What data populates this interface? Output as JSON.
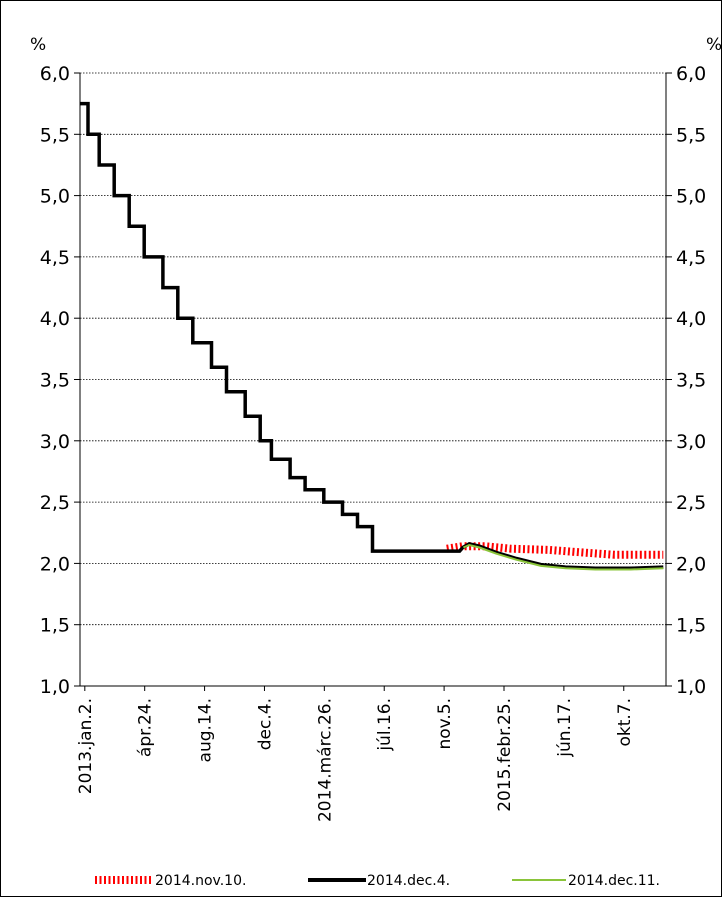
{
  "chart_data": {
    "type": "line",
    "y_unit_left": "%",
    "y_unit_right": "%",
    "ylim": [
      1.0,
      6.0
    ],
    "y_ticks": [
      "1,0",
      "1,5",
      "2,0",
      "2,5",
      "3,0",
      "3,5",
      "4,0",
      "4,5",
      "5,0",
      "5,5",
      "6,0"
    ],
    "y_tick_values": [
      1.0,
      1.5,
      2.0,
      2.5,
      3.0,
      3.5,
      4.0,
      4.5,
      5.0,
      5.5,
      6.0
    ],
    "x_range": [
      "2012-12-24",
      "2015-12-25"
    ],
    "x_ticks": [
      {
        "date": "2013-01-02",
        "label": "2013.jan.2."
      },
      {
        "date": "2013-04-24",
        "label": "ápr.24."
      },
      {
        "date": "2013-08-14",
        "label": "aug.14."
      },
      {
        "date": "2013-12-04",
        "label": "dec.4."
      },
      {
        "date": "2014-03-26",
        "label": "2014.márc.26."
      },
      {
        "date": "2014-07-16",
        "label": "júl.16."
      },
      {
        "date": "2014-11-05",
        "label": "nov.5."
      },
      {
        "date": "2015-02-25",
        "label": "2015.febr.25."
      },
      {
        "date": "2015-06-17",
        "label": "jún.17."
      },
      {
        "date": "2015-10-07",
        "label": "okt.7."
      }
    ],
    "grid": true,
    "legend_position": "bottom",
    "series": [
      {
        "name": "2014.dec.4.",
        "color": "#000000",
        "style": "step",
        "points": [
          {
            "x": "2012-12-24",
            "y": 5.75
          },
          {
            "x": "2013-01-08",
            "y": 5.5
          },
          {
            "x": "2013-01-29",
            "y": 5.25
          },
          {
            "x": "2013-02-26",
            "y": 5.0
          },
          {
            "x": "2013-03-26",
            "y": 4.75
          },
          {
            "x": "2013-04-23",
            "y": 4.5
          },
          {
            "x": "2013-05-28",
            "y": 4.25
          },
          {
            "x": "2013-06-25",
            "y": 4.0
          },
          {
            "x": "2013-07-23",
            "y": 3.8
          },
          {
            "x": "2013-08-27",
            "y": 3.6
          },
          {
            "x": "2013-09-24",
            "y": 3.4
          },
          {
            "x": "2013-10-29",
            "y": 3.2
          },
          {
            "x": "2013-11-26",
            "y": 3.0
          },
          {
            "x": "2013-12-17",
            "y": 2.85
          },
          {
            "x": "2014-01-21",
            "y": 2.7
          },
          {
            "x": "2014-02-18",
            "y": 2.6
          },
          {
            "x": "2014-03-25",
            "y": 2.5
          },
          {
            "x": "2014-04-29",
            "y": 2.4
          },
          {
            "x": "2014-05-27",
            "y": 2.3
          },
          {
            "x": "2014-06-24",
            "y": 2.1
          },
          {
            "x": "2014-07-22",
            "y": 2.1
          },
          {
            "x": "2014-12-04",
            "y": 2.1
          },
          {
            "x": "2014-12-10",
            "y": 2.13
          },
          {
            "x": "2014-12-22",
            "y": 2.16
          },
          {
            "x": "2015-01-10",
            "y": 2.14
          },
          {
            "x": "2015-02-10",
            "y": 2.09
          },
          {
            "x": "2015-03-20",
            "y": 2.04
          },
          {
            "x": "2015-05-05",
            "y": 1.99
          },
          {
            "x": "2015-06-20",
            "y": 1.97
          },
          {
            "x": "2015-08-15",
            "y": 1.96
          },
          {
            "x": "2015-10-20",
            "y": 1.96
          },
          {
            "x": "2015-12-20",
            "y": 1.97
          }
        ]
      },
      {
        "name": "2014.nov.10.",
        "color": "#ff0000",
        "style": "dotted-thick",
        "points": [
          {
            "x": "2014-11-10",
            "y": 2.12
          },
          {
            "x": "2014-12-10",
            "y": 2.14
          },
          {
            "x": "2015-01-20",
            "y": 2.14
          },
          {
            "x": "2015-03-10",
            "y": 2.12
          },
          {
            "x": "2015-05-20",
            "y": 2.11
          },
          {
            "x": "2015-07-20",
            "y": 2.09
          },
          {
            "x": "2015-09-20",
            "y": 2.07
          },
          {
            "x": "2015-12-20",
            "y": 2.07
          }
        ]
      },
      {
        "name": "2014.dec.11.",
        "color": "#8ac43a",
        "style": "solid-thin",
        "points": [
          {
            "x": "2014-12-11",
            "y": 2.13
          },
          {
            "x": "2014-12-22",
            "y": 2.15
          },
          {
            "x": "2015-01-10",
            "y": 2.13
          },
          {
            "x": "2015-02-10",
            "y": 2.08
          },
          {
            "x": "2015-03-20",
            "y": 2.03
          },
          {
            "x": "2015-05-05",
            "y": 1.98
          },
          {
            "x": "2015-06-20",
            "y": 1.96
          },
          {
            "x": "2015-08-15",
            "y": 1.95
          },
          {
            "x": "2015-10-20",
            "y": 1.95
          },
          {
            "x": "2015-12-20",
            "y": 1.96
          }
        ]
      }
    ],
    "legend_order": [
      "2014.nov.10.",
      "2014.dec.4.",
      "2014.dec.11."
    ]
  }
}
